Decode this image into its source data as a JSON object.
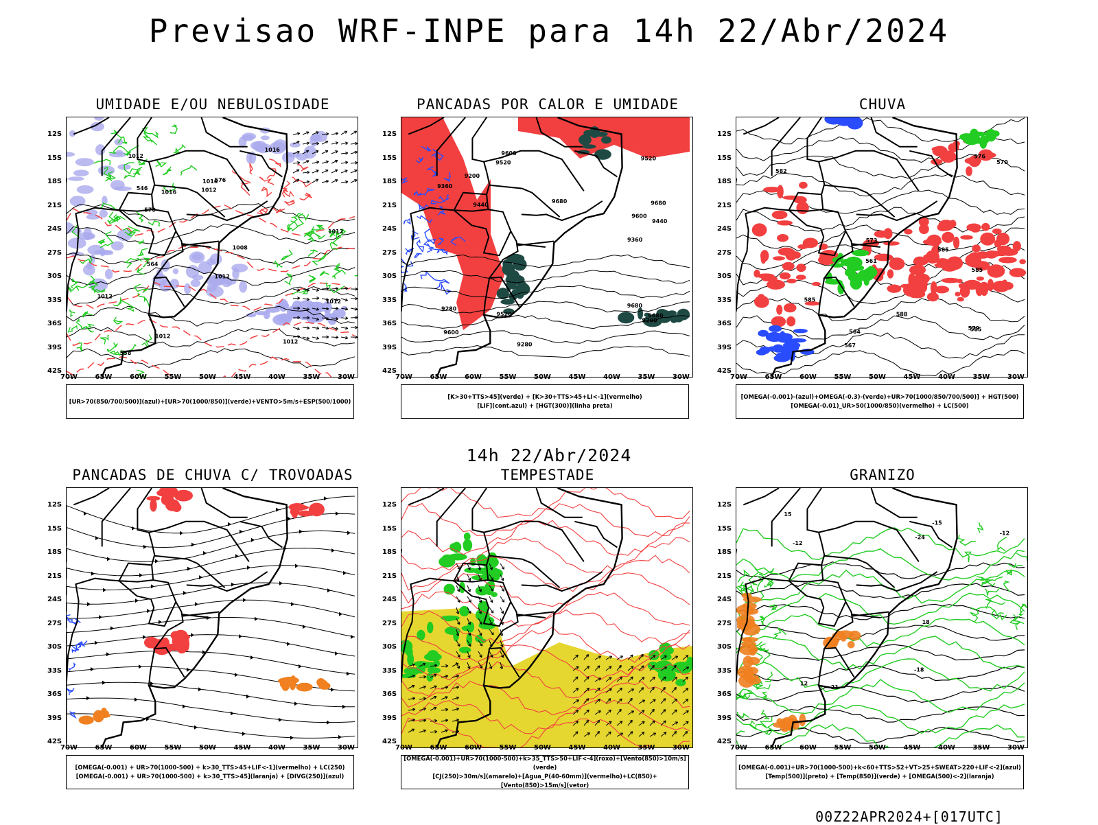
{
  "title": "Previsao WRF-INPE  para 14h 22/Abr/2024",
  "mid_title": "14h 22/Abr/2024",
  "footer": "00Z22APR2024+[017UTC]",
  "lat_ticks": [
    "12S",
    "15S",
    "18S",
    "21S",
    "24S",
    "27S",
    "30S",
    "33S",
    "36S",
    "39S",
    "42S"
  ],
  "lon_ticks": [
    "70W",
    "65W",
    "60W",
    "55W",
    "50W",
    "45W",
    "40W",
    "35W",
    "30W"
  ],
  "colors": {
    "red": "#f24040",
    "green": "#22cc22",
    "blue": "#2a4cff",
    "lavender": "#aaaaee",
    "darkteal": "#1f4a44",
    "yellow": "#e5d630",
    "orange": "#f08020",
    "black": "#000000"
  },
  "panels": [
    {
      "title": "UMIDADE E/OU NEBULOSIDADE",
      "legend": [
        "[UR>70(850/700/500)](azul)+[UR>70(1000/850)](verde)+VENTO>5m/s+ESP(500/1000)"
      ],
      "contour_labels": [
        "1012",
        "1012",
        "1012",
        "1012",
        "1012",
        "1016",
        "1016",
        "1008",
        "1012",
        "1012",
        "1016",
        "1012",
        "576",
        "570",
        "564",
        "558",
        "546"
      ]
    },
    {
      "title": "PANCADAS POR CALOR E UMIDADE",
      "legend": [
        "[K>30+TTS>45](verde) + [K>30+TTS>45+LI<-1](vermelho)",
        "[LIF](cont.azul) + [HGT(300)](linha preta)"
      ],
      "contour_labels": [
        "9680",
        "9680",
        "9680",
        "9680",
        "9600",
        "9600",
        "9600",
        "9520",
        "9520",
        "9440",
        "9440",
        "9360",
        "9360",
        "9280",
        "9280",
        "9200",
        "9200",
        "9520"
      ]
    },
    {
      "title": "CHUVA",
      "legend": [
        "[OMEGA(-0.001)-(azul)+OMEGA(-0.3)-(verde)+UR>70(1000/850/700/500)] + HGT(500)",
        "[OMEGA(-0.01)_UR>50(1000/850)(vermelho) + LC(500)"
      ],
      "contour_labels": [
        "585",
        "585",
        "585",
        "582",
        "579",
        "576",
        "573",
        "570",
        "567",
        "564",
        "561",
        "588",
        "585"
      ]
    },
    {
      "title": "PANCADAS DE CHUVA C/ TROVOADAS",
      "legend": [
        "[OMEGA(-0.001) + UR>70(1000-500) + k>30_TTS>45+LIF<-1](vermelho) + LC(250)",
        "[OMEGA(-0.001) + UR>70(1000-500) + k>30_TTS>45](laranja) + [DIVG(250)](azul)"
      ],
      "contour_labels": []
    },
    {
      "title": "TEMPESTADE",
      "legend": [
        "[OMEGA(-0.001)+UR>70(1000-500)+k>35_TTS>50+LIF<-4](roxo)+[Vento(850)>10m/s](verde)",
        "[CJ(250)>30m/s](amarelo)+[Agua_P(40-60mm)](vermelho)+LC(850)+[Vento(850)>15m/s](vetor)"
      ],
      "contour_labels": []
    },
    {
      "title": "GRANIZO",
      "legend": [
        "[OMEGA(-0.001)+UR>70(1000-500)+k<60+TTS>52+VT>25+SWEAT>220+LIF<-2](azul)",
        "[Temp(500)](preto) + [Temp(850)](verde) + [OMEGA(500)<-2](laranja)"
      ],
      "contour_labels": [
        "-12",
        "-12",
        "-15",
        "-18",
        "-21",
        "-24",
        "12",
        "15",
        "18"
      ]
    }
  ]
}
